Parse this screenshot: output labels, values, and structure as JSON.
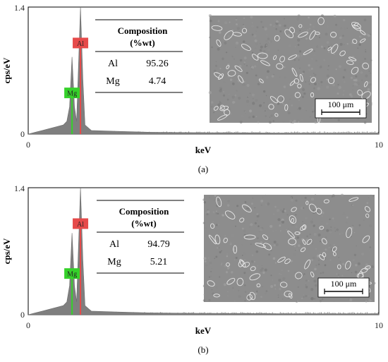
{
  "chart_data": [
    {
      "type": "area",
      "panel_label": "(a)",
      "xlabel": "keV",
      "ylabel": "cps/eV",
      "xlim": [
        0,
        10
      ],
      "ylim": [
        0,
        1.4
      ],
      "x_ticks": [
        "0",
        "10"
      ],
      "y_ticks": [
        "0",
        "1.4"
      ],
      "grid": false,
      "peaks": [
        {
          "element": "Mg",
          "energy": 1.25,
          "height": 0.85,
          "marker_color": "#35d12a"
        },
        {
          "element": "Al",
          "energy": 1.49,
          "height": 1.4,
          "marker_color": "#e64a4a"
        }
      ],
      "spectrum": {
        "x": [
          0.0,
          0.2,
          0.4,
          0.6,
          0.8,
          1.0,
          1.1,
          1.18,
          1.25,
          1.32,
          1.38,
          1.42,
          1.49,
          1.56,
          1.62,
          1.8,
          2.5,
          3.5,
          5.0,
          7.0,
          10.0
        ],
        "y": [
          0.0,
          0.02,
          0.04,
          0.06,
          0.08,
          0.1,
          0.14,
          0.3,
          0.85,
          0.3,
          0.14,
          0.6,
          1.4,
          0.6,
          0.1,
          0.04,
          0.03,
          0.02,
          0.015,
          0.012,
          0.01
        ]
      },
      "composition": {
        "header_line1": "Composition",
        "header_line2": "(%wt)",
        "rows": [
          {
            "element": "Al",
            "value": "95.26"
          },
          {
            "element": "Mg",
            "value": "4.74"
          }
        ]
      },
      "micrograph_scale_bar": "100 μm"
    },
    {
      "type": "area",
      "panel_label": "(b)",
      "xlabel": "keV",
      "ylabel": "cps/eV",
      "xlim": [
        0,
        10
      ],
      "ylim": [
        0,
        1.4
      ],
      "x_ticks": [
        "0",
        "10"
      ],
      "y_ticks": [
        "0",
        "1.4"
      ],
      "grid": false,
      "peaks": [
        {
          "element": "Mg",
          "energy": 1.25,
          "height": 0.9,
          "marker_color": "#35d12a"
        },
        {
          "element": "Al",
          "energy": 1.49,
          "height": 1.4,
          "marker_color": "#e64a4a"
        }
      ],
      "spectrum": {
        "x": [
          0.0,
          0.2,
          0.4,
          0.6,
          0.8,
          1.0,
          1.1,
          1.18,
          1.25,
          1.32,
          1.38,
          1.42,
          1.49,
          1.56,
          1.62,
          1.8,
          2.5,
          3.5,
          5.0,
          7.0,
          10.0
        ],
        "y": [
          0.0,
          0.02,
          0.04,
          0.06,
          0.08,
          0.1,
          0.14,
          0.32,
          0.9,
          0.32,
          0.14,
          0.6,
          1.4,
          0.6,
          0.1,
          0.04,
          0.03,
          0.02,
          0.015,
          0.012,
          0.01
        ]
      },
      "composition": {
        "header_line1": "Composition",
        "header_line2": "(%wt)",
        "rows": [
          {
            "element": "Al",
            "value": "94.79"
          },
          {
            "element": "Mg",
            "value": "5.21"
          }
        ]
      },
      "micrograph_scale_bar": "100 μm"
    }
  ]
}
